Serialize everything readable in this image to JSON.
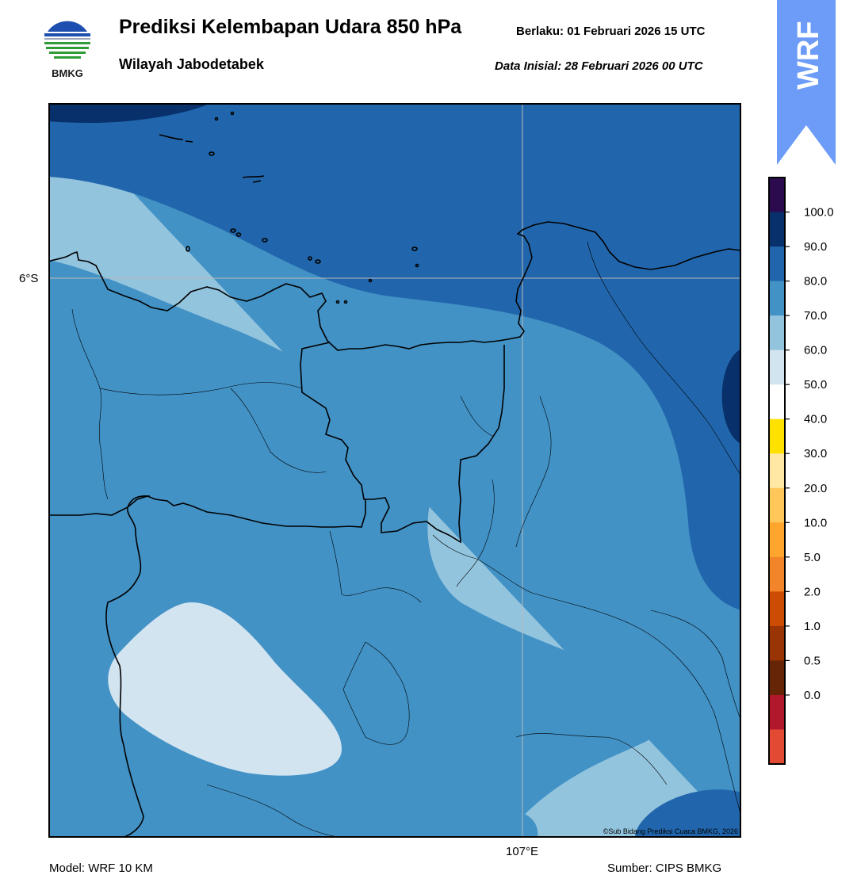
{
  "header": {
    "title": "Prediksi Kelembapan Udara 850 hPa",
    "subtitle": "Wilayah Jabodetabek",
    "valid_time": "Berlaku:  01 Februari 2026 15 UTC",
    "init_time": "Data Inisial:  28 Februari 2026 00 UTC"
  },
  "logo": {
    "text": "BMKG"
  },
  "badge": {
    "text": "WRF",
    "color": "#6c9cf7"
  },
  "map": {
    "lat_label": "6°S",
    "lon_label": "107°E",
    "copyright": "©Sub Bidang Prediksi Cuaca BMKG, 2026",
    "fill_colors": {
      "60_70": "#93c4de",
      "70_80": "#4292c6",
      "80_90": "#2166ac",
      "90_100": "#08306b",
      "50_60": "#d2e4f0"
    }
  },
  "colorbar": {
    "ticks": [
      "100.0",
      "90.0",
      "80.0",
      "70.0",
      "60.0",
      "50.0",
      "40.0",
      "30.0",
      "20.0",
      "10.0",
      "5.0",
      "2.0",
      "1.0",
      "0.5",
      "0.0"
    ],
    "colors_top_to_bottom": [
      "#2b0a4e",
      "#08306b",
      "#2166ac",
      "#4292c6",
      "#93c4de",
      "#d2e4f0",
      "#ffffff",
      "#ffe100",
      "#ffe8a3",
      "#ffc65a",
      "#ffa52e",
      "#f2842a",
      "#cc4c02",
      "#993404",
      "#662506",
      "#b2182b",
      "#e34a33"
    ]
  },
  "footer": {
    "model": "Model: WRF 10 KM",
    "source": "Sumber: CIPS BMKG"
  }
}
